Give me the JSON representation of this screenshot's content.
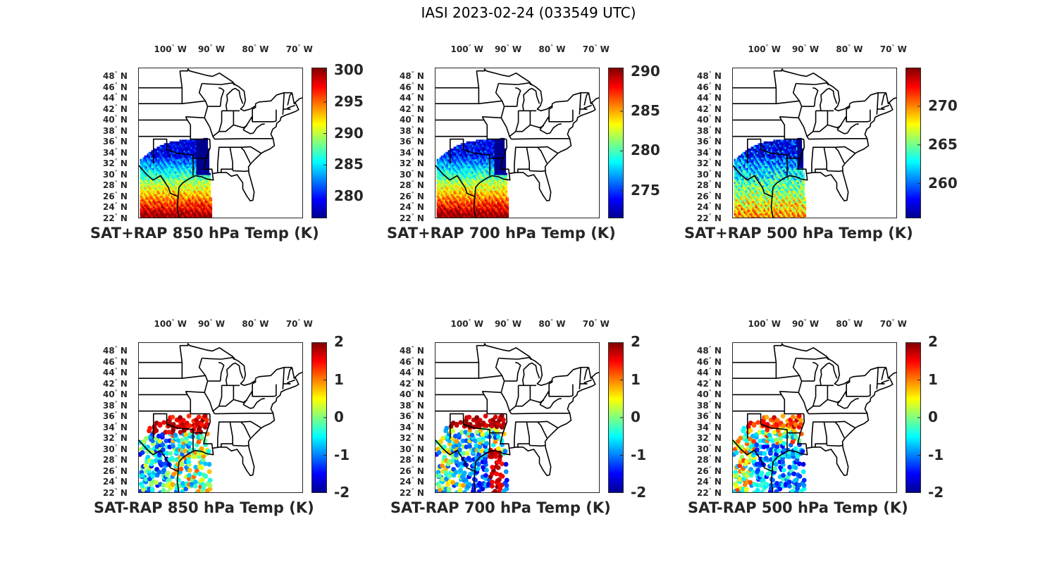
{
  "figure": {
    "title": "IASI 2023-02-24 (033549 UTC)"
  },
  "colormap": [
    "#00008f",
    "#0000ff",
    "#0080ff",
    "#00ffff",
    "#80ff80",
    "#ffff00",
    "#ff8000",
    "#ff0000",
    "#800000"
  ],
  "axes": {
    "lon_ticks": [
      {
        "deg": "100",
        "hemi": "W"
      },
      {
        "deg": "90",
        "hemi": "W"
      },
      {
        "deg": "80",
        "hemi": "W"
      },
      {
        "deg": "70",
        "hemi": "W"
      }
    ],
    "lat_ticks": [
      {
        "deg": "48",
        "hemi": "N"
      },
      {
        "deg": "46",
        "hemi": "N"
      },
      {
        "deg": "44",
        "hemi": "N"
      },
      {
        "deg": "42",
        "hemi": "N"
      },
      {
        "deg": "40",
        "hemi": "N"
      },
      {
        "deg": "38",
        "hemi": "N"
      },
      {
        "deg": "36",
        "hemi": "N"
      },
      {
        "deg": "34",
        "hemi": "N"
      },
      {
        "deg": "32",
        "hemi": "N"
      },
      {
        "deg": "30",
        "hemi": "N"
      },
      {
        "deg": "28",
        "hemi": "N"
      },
      {
        "deg": "26",
        "hemi": "N"
      },
      {
        "deg": "24",
        "hemi": "N"
      },
      {
        "deg": "22",
        "hemi": "N"
      }
    ]
  },
  "panels": [
    {
      "title": "SAT+RAP 850 hPa Temp (K)",
      "colorbar": {
        "min": 276.5,
        "max": 300.5,
        "ticks": [
          "300",
          "295",
          "290",
          "285",
          "280"
        ]
      },
      "field": "temp850"
    },
    {
      "title": "SAT+RAP 700 hPa Temp (K)",
      "colorbar": {
        "min": 271.5,
        "max": 290.5,
        "ticks": [
          "290",
          "285",
          "280",
          "275"
        ]
      },
      "field": "temp700"
    },
    {
      "title": "SAT+RAP 500 hPa Temp (K)",
      "colorbar": {
        "min": 255.5,
        "max": 275,
        "ticks": [
          "270",
          "265",
          "260"
        ]
      },
      "field": "temp500"
    },
    {
      "title": "SAT-RAP 850 hPa Temp (K)",
      "colorbar": {
        "min": -2,
        "max": 2,
        "ticks": [
          "2",
          "1",
          "0",
          "-1",
          "-2"
        ]
      },
      "field": "diff850"
    },
    {
      "title": "SAT-RAP 700 hPa Temp (K)",
      "colorbar": {
        "min": -2,
        "max": 2,
        "ticks": [
          "2",
          "1",
          "0",
          "-1",
          "-2"
        ]
      },
      "field": "diff700"
    },
    {
      "title": "SAT-RAP 500 hPa Temp (K)",
      "colorbar": {
        "min": -2,
        "max": 2,
        "ticks": [
          "2",
          "1",
          "0",
          "-1",
          "-2"
        ]
      },
      "field": "diff500"
    }
  ]
}
